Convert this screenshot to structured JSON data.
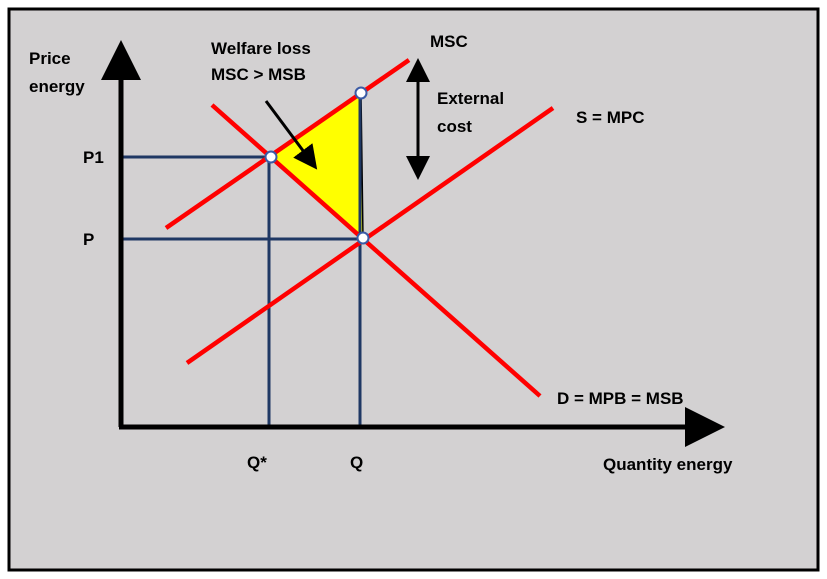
{
  "labels": {
    "y_axis_line1": "Price",
    "y_axis_line2": "energy",
    "x_axis": "Quantity energy",
    "p1": "P1",
    "p": "P",
    "q_star": "Q*",
    "q": "Q",
    "msc": "MSC",
    "supply": "S = MPC",
    "demand": "D = MPB = MSB",
    "welfare_line1": "Welfare loss",
    "welfare_line2": "MSC > MSB",
    "external_line1": "External",
    "external_line2": "cost"
  },
  "colors": {
    "background": "#d3d1d2",
    "border": "#000000",
    "curves": "#ff0000",
    "guides": "#1f3864",
    "welfare_area": "#ffff00",
    "axes": "#000000"
  }
}
